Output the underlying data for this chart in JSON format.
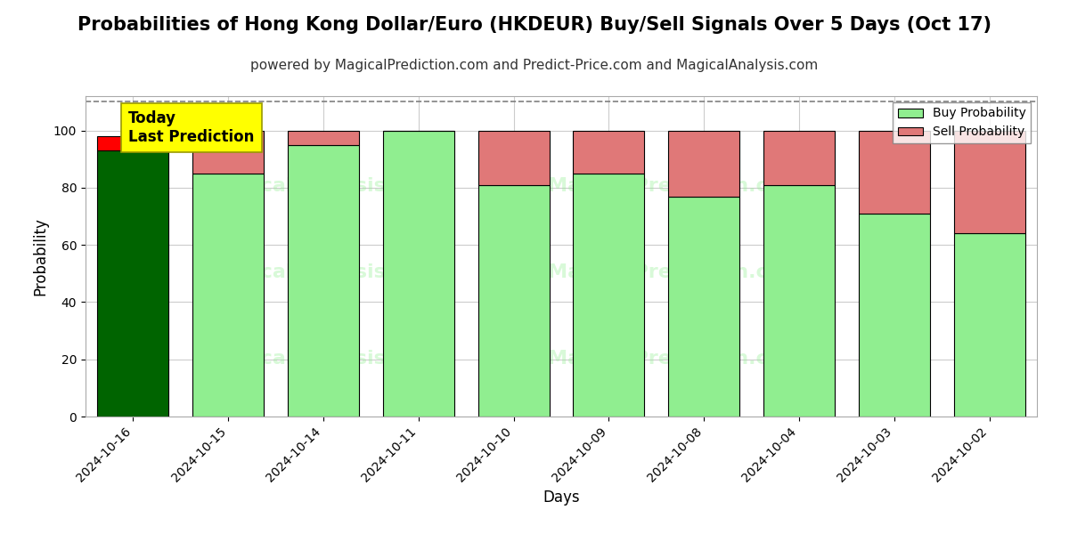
{
  "title": "Probabilities of Hong Kong Dollar/Euro (HKDEUR) Buy/Sell Signals Over 5 Days (Oct 17)",
  "subtitle": "powered by MagicalPrediction.com and Predict-Price.com and MagicalAnalysis.com",
  "xlabel": "Days",
  "ylabel": "Probability",
  "dates": [
    "2024-10-16",
    "2024-10-15",
    "2024-10-14",
    "2024-10-11",
    "2024-10-10",
    "2024-10-09",
    "2024-10-08",
    "2024-10-04",
    "2024-10-03",
    "2024-10-02"
  ],
  "buy_values": [
    93,
    85,
    95,
    100,
    81,
    85,
    77,
    81,
    71,
    64
  ],
  "sell_values": [
    5,
    15,
    5,
    0,
    19,
    15,
    23,
    19,
    29,
    36
  ],
  "today_bar_index": 0,
  "today_buy_color": "#006400",
  "today_sell_color": "#ff0000",
  "buy_color": "#90ee90",
  "sell_color": "#e07878",
  "annotation_text": "Today\nLast Prediction",
  "annotation_bg": "#ffff00",
  "ylim": [
    0,
    112
  ],
  "dashed_line_y": 110,
  "watermark_text_left": "MagicalAnalysis.com",
  "watermark_text_right": "MagicalPrediction.com",
  "grid_color": "#cccccc",
  "bar_edge_color": "#000000",
  "title_fontsize": 15,
  "subtitle_fontsize": 11,
  "label_fontsize": 12,
  "tick_fontsize": 10,
  "bar_width": 0.75
}
